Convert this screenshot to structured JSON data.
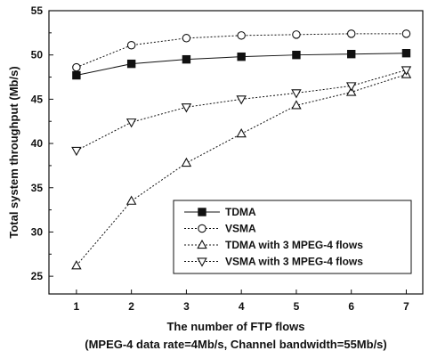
{
  "chart_data": {
    "type": "line",
    "xlabel": "The number of FTP flows",
    "xlabel_note": "(MPEG-4 data rate=4Mb/s, Channel bandwidth=55Mb/s)",
    "ylabel": "Total system throughput (Mb/s)",
    "xlim": [
      0.5,
      7.3
    ],
    "ylim": [
      23,
      55
    ],
    "xticks": [
      1,
      2,
      3,
      4,
      5,
      6,
      7
    ],
    "yticks": [
      25,
      30,
      35,
      40,
      45,
      50,
      55
    ],
    "grid": false,
    "legend_position": "lower-right",
    "x": [
      1,
      2,
      3,
      4,
      5,
      6,
      7
    ],
    "series": [
      {
        "name": "TDMA",
        "marker": "filled-square",
        "line": "solid",
        "values": [
          47.7,
          49.0,
          49.5,
          49.8,
          50.0,
          50.1,
          50.2
        ]
      },
      {
        "name": "VSMA",
        "marker": "open-circle",
        "line": "dotted",
        "values": [
          48.6,
          51.1,
          51.9,
          52.2,
          52.3,
          52.4,
          52.4
        ]
      },
      {
        "name": "TDMA with 3 MPEG-4 flows",
        "marker": "open-triangle-up",
        "line": "dotted",
        "values": [
          26.2,
          33.5,
          37.8,
          41.1,
          44.3,
          45.8,
          47.8
        ]
      },
      {
        "name": "VSMA with 3 MPEG-4 flows",
        "marker": "open-triangle-down",
        "line": "dotted",
        "values": [
          39.2,
          42.4,
          44.1,
          45.0,
          45.7,
          46.5,
          48.3
        ]
      }
    ]
  }
}
